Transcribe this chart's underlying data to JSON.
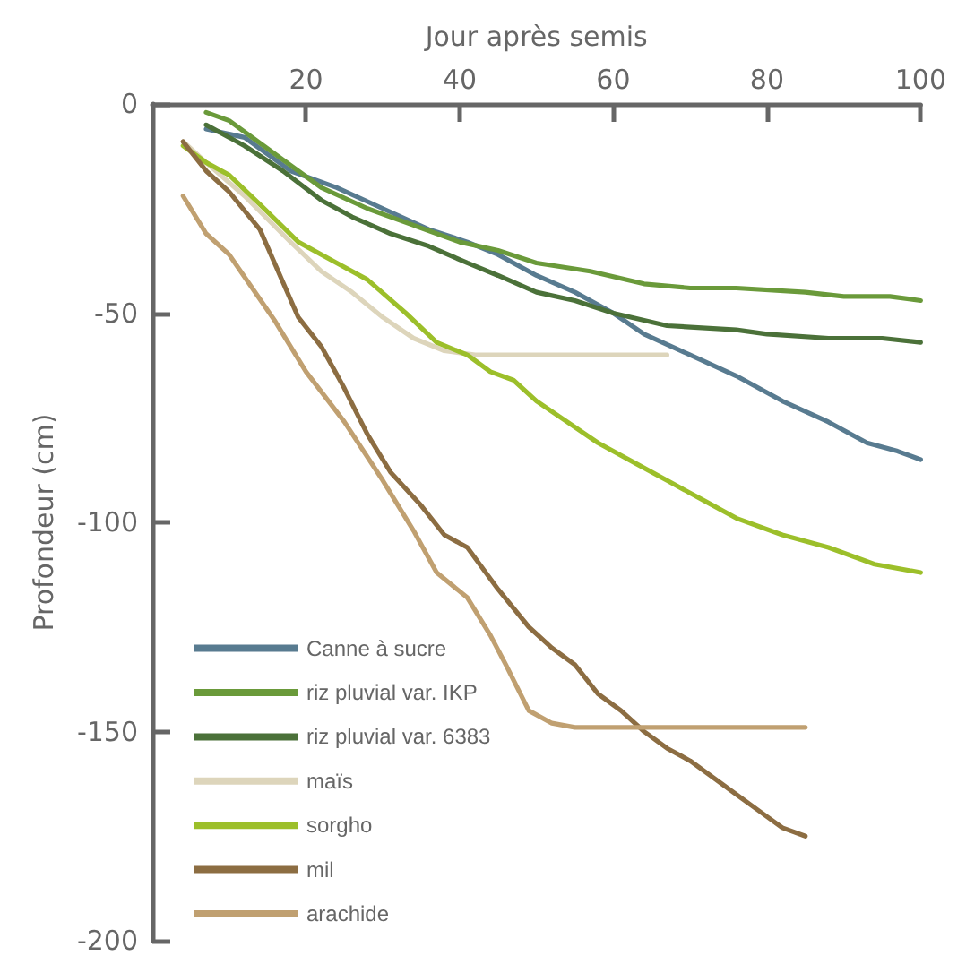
{
  "chart_data": {
    "type": "line",
    "xlabel": "Jour après semis",
    "ylabel": "Profondeur (cm)",
    "xlim": [
      0,
      100
    ],
    "xticks": [
      20,
      40,
      60,
      80,
      100
    ],
    "ylim": [
      -200,
      0
    ],
    "yticks": [
      -200,
      -150,
      -100,
      -50,
      0
    ],
    "grid": false,
    "legend": "bottom left",
    "marker": "none",
    "line_style": "solid",
    "series": [
      {
        "name": "Canne à sucre",
        "color": "#587b90",
        "x": [
          7,
          12,
          18,
          24,
          30,
          36,
          41,
          45,
          50,
          55,
          60,
          64,
          70,
          76,
          82,
          88,
          93,
          97,
          100
        ],
        "values": [
          -6,
          -8,
          -16,
          -20,
          -25,
          -30,
          -33,
          -36,
          -41,
          -45,
          -50,
          -55,
          -60,
          -65,
          -71,
          -76,
          -81,
          -83,
          -85
        ]
      },
      {
        "name": "riz pluvial var. IKP",
        "color": "#6a9a3a",
        "x": [
          7,
          10,
          16,
          22,
          28,
          34,
          40,
          45,
          50,
          57,
          64,
          70,
          76,
          85,
          90,
          96,
          100
        ],
        "values": [
          -2,
          -4,
          -12,
          -20,
          -25,
          -29,
          -33,
          -35,
          -38,
          -40,
          -43,
          -44,
          -44,
          -45,
          -46,
          -46,
          -47
        ]
      },
      {
        "name": "riz pluvial var. 6383",
        "color": "#4b7139",
        "x": [
          7,
          12,
          17,
          22,
          26,
          31,
          36,
          41,
          45,
          50,
          55,
          60,
          67,
          76,
          80,
          88,
          95,
          100
        ],
        "values": [
          -5,
          -10,
          -16,
          -23,
          -27,
          -31,
          -34,
          -38,
          -41,
          -45,
          -47,
          -50,
          -53,
          -54,
          -55,
          -56,
          -56,
          -57
        ]
      },
      {
        "name": "maïs",
        "color": "#ddd5bb",
        "x": [
          4,
          7,
          12,
          18,
          22,
          26,
          30,
          34,
          38,
          42,
          50,
          60,
          67
        ],
        "values": [
          -9,
          -14,
          -22,
          -33,
          -40,
          -45,
          -51,
          -56,
          -59,
          -60,
          -60,
          -60,
          -60
        ]
      },
      {
        "name": "sorgho",
        "color": "#9cbf2a",
        "x": [
          4,
          7,
          10,
          14,
          19,
          24,
          28,
          33,
          37,
          41,
          44,
          47,
          50,
          54,
          58,
          63,
          67,
          72,
          76,
          82,
          88,
          94,
          100
        ],
        "values": [
          -10,
          -14,
          -17,
          -24,
          -33,
          -38,
          -42,
          -50,
          -57,
          -60,
          -64,
          -66,
          -71,
          -76,
          -81,
          -86,
          -90,
          -95,
          -99,
          -103,
          -106,
          -110,
          -112
        ]
      },
      {
        "name": "mil",
        "color": "#8c6d42",
        "x": [
          4,
          7,
          10,
          14,
          19,
          22,
          25,
          28,
          31,
          35,
          38,
          41,
          45,
          49,
          52,
          55,
          58,
          61,
          64,
          67,
          70,
          73,
          76,
          79,
          82,
          85
        ],
        "values": [
          -9,
          -16,
          -21,
          -30,
          -51,
          -58,
          -68,
          -79,
          -88,
          -96,
          -103,
          -106,
          -116,
          -125,
          -130,
          -134,
          -141,
          -145,
          -150,
          -154,
          -157,
          -161,
          -165,
          -169,
          -173,
          -175
        ]
      },
      {
        "name": "arachide",
        "color": "#c0a071",
        "x": [
          4,
          7,
          10,
          13,
          16,
          20,
          25,
          30,
          34,
          37,
          41,
          44,
          46,
          49,
          52,
          55,
          70,
          85
        ],
        "values": [
          -22,
          -31,
          -36,
          -44,
          -52,
          -64,
          -76,
          -90,
          -102,
          -112,
          -118,
          -127,
          -134,
          -145,
          -148,
          -149,
          -149,
          -149
        ]
      }
    ]
  }
}
